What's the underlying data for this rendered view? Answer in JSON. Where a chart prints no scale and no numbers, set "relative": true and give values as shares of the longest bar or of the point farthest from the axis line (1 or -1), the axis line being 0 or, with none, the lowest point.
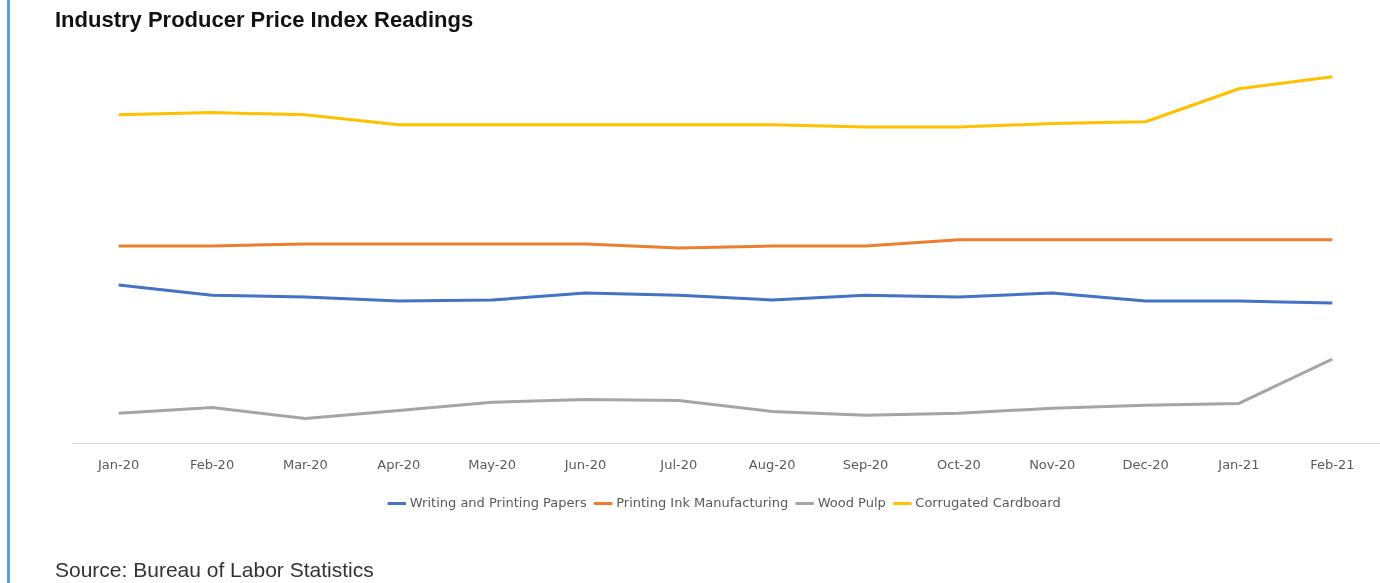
{
  "chart_data": {
    "type": "line",
    "title": "Industry Producer Price Index Readings",
    "relative": true,
    "grid": false,
    "legend": "bottom",
    "categories": [
      "Jan-20",
      "Feb-20",
      "Mar-20",
      "Apr-20",
      "May-20",
      "Jun-20",
      "Jul-20",
      "Aug-20",
      "Sep-20",
      "Oct-20",
      "Nov-20",
      "Dec-20",
      "Jan-21",
      "Feb-21"
    ],
    "series": [
      {
        "name": "Writing and Printing Papers",
        "color": "#4472c4",
        "values": [
          0.432,
          0.404,
          0.399,
          0.388,
          0.391,
          0.41,
          0.404,
          0.391,
          0.404,
          0.399,
          0.41,
          0.388,
          0.388,
          0.383
        ]
      },
      {
        "name": "Printing Ink Manufacturing",
        "color": "#ed7d31",
        "values": [
          0.538,
          0.538,
          0.544,
          0.544,
          0.544,
          0.544,
          0.533,
          0.538,
          0.538,
          0.555,
          0.555,
          0.555,
          0.555,
          0.555
        ]
      },
      {
        "name": "Wood Pulp",
        "color": "#a5a5a5",
        "values": [
          0.082,
          0.098,
          0.068,
          0.09,
          0.112,
          0.12,
          0.117,
          0.087,
          0.077,
          0.082,
          0.096,
          0.104,
          0.109,
          0.23
        ]
      },
      {
        "name": "Corrugated Cardboard",
        "color": "#ffc000",
        "values": [
          0.896,
          0.902,
          0.896,
          0.869,
          0.869,
          0.869,
          0.869,
          0.869,
          0.863,
          0.863,
          0.872,
          0.877,
          0.967,
          1
        ]
      }
    ],
    "annotations": [
      "Source: Bureau of Labor Statistics"
    ]
  }
}
